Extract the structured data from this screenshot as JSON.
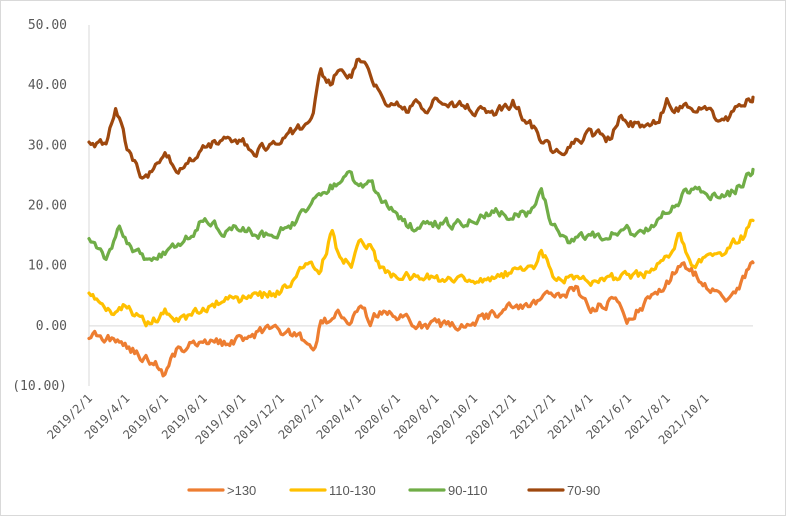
{
  "chart_data": {
    "type": "line",
    "title": "",
    "xlabel": "",
    "ylabel": "",
    "ylim": [
      -10,
      50
    ],
    "y_ticks": [
      "50.00",
      "40.00",
      "30.00",
      "20.00",
      "10.00",
      "0.00",
      "(10.00)"
    ],
    "y_negative_label_color": "#c00000",
    "x_ticks": [
      "2019/2/1",
      "2019/4/1",
      "2019/6/1",
      "2019/8/1",
      "2019/10/1",
      "2019/12/1",
      "2020/2/1",
      "2020/4/1",
      "2020/6/1",
      "2020/8/1",
      "2020/10/1",
      "2020/12/1",
      "2021/2/1",
      "2021/4/1",
      "2021/6/1",
      "2021/8/1",
      "2021/10/1"
    ],
    "x_range": [
      "2019/2/1",
      "2021/12/15"
    ],
    "grid": false,
    "legend_position": "bottom",
    "series": [
      {
        "name": ">130",
        "color": "#ed7d31",
        "x": [
          "2019/2/1",
          "2019/3/1",
          "2019/4/1",
          "2019/4/20",
          "2019/5/15",
          "2019/6/1",
          "2019/6/20",
          "2019/7/15",
          "2019/8/1",
          "2019/9/1",
          "2019/10/1",
          "2019/11/1",
          "2019/12/1",
          "2020/1/1",
          "2020/1/20",
          "2020/2/1",
          "2020/3/1",
          "2020/3/20",
          "2020/4/1",
          "2020/4/20",
          "2020/5/1",
          "2020/6/1",
          "2020/7/1",
          "2020/8/1",
          "2020/9/1",
          "2020/10/1",
          "2020/11/1",
          "2020/12/1",
          "2021/1/1",
          "2021/2/1",
          "2021/2/20",
          "2021/3/10",
          "2021/4/1",
          "2021/5/1",
          "2021/5/20",
          "2021/6/1",
          "2021/6/20",
          "2021/7/10",
          "2021/8/1",
          "2021/8/20",
          "2021/9/10",
          "2021/10/1",
          "2021/10/20",
          "2021/11/10",
          "2021/12/1",
          "2021/12/15"
        ],
        "values": [
          -1.5,
          -2,
          -3,
          -5,
          -6,
          -8,
          -4,
          -3,
          -2,
          -3,
          -2,
          -1,
          -1,
          -2,
          -5,
          0,
          2,
          1,
          3,
          1,
          2,
          2,
          0,
          0,
          0,
          1,
          2,
          3,
          4,
          5,
          5,
          6,
          3,
          4,
          4,
          1,
          3,
          5,
          7,
          10,
          9,
          7,
          6,
          4,
          8,
          10.5
        ]
      },
      {
        "name": "110-130",
        "color": "#ffc000",
        "x": [
          "2019/2/1",
          "2019/3/1",
          "2019/4/1",
          "2019/5/1",
          "2019/6/1",
          "2019/7/1",
          "2019/8/1",
          "2019/9/1",
          "2019/10/1",
          "2019/11/1",
          "2019/12/1",
          "2020/1/1",
          "2020/1/20",
          "2020/2/1",
          "2020/2/20",
          "2020/3/1",
          "2020/3/20",
          "2020/4/1",
          "2020/4/20",
          "2020/5/1",
          "2020/6/1",
          "2020/7/1",
          "2020/8/1",
          "2020/9/1",
          "2020/10/1",
          "2020/11/1",
          "2020/12/1",
          "2021/1/1",
          "2021/1/15",
          "2021/2/1",
          "2021/3/1",
          "2021/4/1",
          "2021/5/1",
          "2021/6/1",
          "2021/7/1",
          "2021/7/20",
          "2021/8/1",
          "2021/8/20",
          "2021/9/10",
          "2021/10/1",
          "2021/10/20",
          "2021/11/10",
          "2021/12/1",
          "2021/12/15"
        ],
        "values": [
          6,
          2,
          4,
          0,
          2,
          1,
          3,
          4,
          4.5,
          5,
          6,
          9,
          10,
          9,
          16,
          12,
          10,
          14,
          13,
          10,
          8,
          8,
          8,
          7,
          8,
          8,
          9,
          9,
          13,
          9,
          8,
          7,
          8,
          8,
          9,
          10,
          11,
          15,
          9,
          11,
          12,
          13,
          15,
          17.5
        ]
      },
      {
        "name": "90-110",
        "color": "#70ad47",
        "x": [
          "2019/2/1",
          "2019/3/1",
          "2019/3/20",
          "2019/4/10",
          "2019/5/1",
          "2019/6/1",
          "2019/7/1",
          "2019/8/1",
          "2019/9/1",
          "2019/10/1",
          "2019/11/1",
          "2019/12/1",
          "2020/1/1",
          "2020/2/1",
          "2020/3/1",
          "2020/3/20",
          "2020/4/1",
          "2020/4/20",
          "2020/5/1",
          "2020/5/20",
          "2020/6/1",
          "2020/7/1",
          "2020/8/1",
          "2020/9/1",
          "2020/10/1",
          "2020/11/1",
          "2020/12/1",
          "2021/1/1",
          "2021/1/15",
          "2021/2/1",
          "2021/3/1",
          "2021/4/1",
          "2021/5/1",
          "2021/6/1",
          "2021/6/20",
          "2021/7/10",
          "2021/8/1",
          "2021/8/20",
          "2021/9/10",
          "2021/10/1",
          "2021/10/20",
          "2021/11/10",
          "2021/12/1",
          "2021/12/15"
        ],
        "values": [
          15,
          11,
          16,
          13,
          11,
          12,
          14,
          18,
          16,
          16,
          15,
          16,
          18,
          22,
          24,
          25,
          23,
          24,
          22,
          20,
          18,
          16,
          17,
          17,
          18,
          19,
          18,
          19,
          22,
          17,
          14,
          15,
          15,
          16,
          15,
          17,
          19,
          21,
          23,
          22,
          21,
          22,
          24,
          26
        ]
      },
      {
        "name": "70-90",
        "color": "#9e480e",
        "x": [
          "2019/2/1",
          "2019/3/1",
          "2019/3/15",
          "2019/4/1",
          "2019/4/15",
          "2019/5/1",
          "2019/5/15",
          "2019/6/1",
          "2019/6/20",
          "2019/7/15",
          "2019/8/1",
          "2019/9/1",
          "2019/10/1",
          "2019/10/20",
          "2019/11/15",
          "2019/12/1",
          "2020/1/1",
          "2020/1/20",
          "2020/2/1",
          "2020/2/20",
          "2020/3/1",
          "2020/3/20",
          "2020/4/1",
          "2020/4/20",
          "2020/5/1",
          "2020/5/20",
          "2020/6/1",
          "2020/6/15",
          "2020/7/1",
          "2020/7/20",
          "2020/8/1",
          "2020/9/1",
          "2020/10/1",
          "2020/11/1",
          "2020/12/1",
          "2021/1/1",
          "2021/1/15",
          "2021/2/1",
          "2021/3/1",
          "2021/4/1",
          "2021/5/1",
          "2021/5/20",
          "2021/6/1",
          "2021/7/1",
          "2021/7/20",
          "2021/8/1",
          "2021/8/20",
          "2021/9/10",
          "2021/10/1",
          "2021/10/20",
          "2021/11/10",
          "2021/12/1",
          "2021/12/15"
        ],
        "values": [
          31,
          30,
          36,
          30,
          27,
          24,
          27,
          29,
          26,
          28,
          30,
          31,
          31,
          29,
          30,
          31,
          33,
          35,
          42,
          40,
          43,
          41,
          44,
          42,
          40,
          36,
          38,
          36,
          37,
          35,
          38,
          37,
          36,
          35,
          37,
          33,
          31,
          29,
          30,
          32,
          31,
          35,
          34,
          33,
          34,
          37,
          36,
          36,
          37,
          34,
          35,
          37,
          38
        ]
      }
    ]
  }
}
